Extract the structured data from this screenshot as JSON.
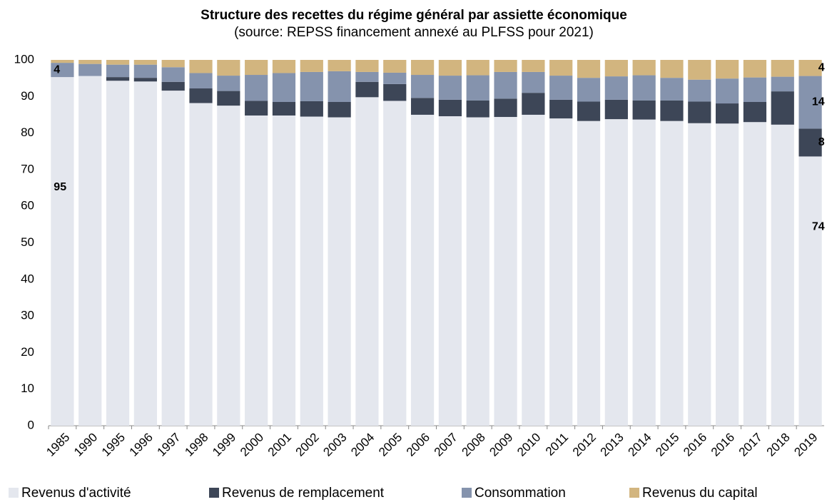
{
  "chart_data": {
    "type": "stacked_bar",
    "title": "Structure des recettes du régime général par assiette économique",
    "subtitle": "(source: REPSS financement annexé au PLFSS pour 2021)",
    "categories": [
      "1985",
      "1990",
      "1995",
      "1996",
      "1997",
      "1998",
      "1999",
      "2000",
      "2001",
      "2002",
      "2003",
      "2004",
      "2005",
      "2006",
      "2007",
      "2008",
      "2009",
      "2010",
      "2011",
      "2012",
      "2013",
      "2014",
      "2015",
      "2016",
      "2016",
      "2017",
      "2018",
      "2019"
    ],
    "series": [
      {
        "name": "Revenus d'activité",
        "color": "#e4e7ee",
        "values": [
          95.3,
          95.6,
          94.3,
          94.1,
          91.6,
          88.2,
          87.5,
          84.8,
          84.8,
          84.5,
          84.3,
          89.8,
          88.8,
          85.0,
          84.6,
          84.3,
          84.4,
          85.0,
          84.0,
          83.3,
          83.8,
          83.7,
          83.3,
          82.7,
          82.6,
          83.0,
          82.3,
          73.6
        ],
        "value_labels": [
          "95",
          null,
          null,
          null,
          null,
          null,
          null,
          null,
          null,
          null,
          null,
          null,
          null,
          null,
          null,
          null,
          null,
          null,
          null,
          null,
          null,
          null,
          null,
          null,
          null,
          null,
          null,
          "74"
        ]
      },
      {
        "name": "Revenus de remplacement",
        "color": "#3d4657",
        "values": [
          0,
          0,
          1.0,
          1.0,
          2.4,
          4.0,
          4.0,
          4.0,
          3.7,
          4.2,
          4.2,
          4.2,
          4.6,
          4.6,
          4.5,
          4.6,
          5.0,
          6.0,
          5.1,
          5.3,
          5.3,
          5.2,
          5.6,
          5.9,
          5.5,
          5.5,
          9.1,
          7.6
        ],
        "value_labels": [
          null,
          null,
          null,
          null,
          null,
          null,
          null,
          null,
          null,
          null,
          null,
          null,
          null,
          null,
          null,
          null,
          null,
          null,
          null,
          null,
          null,
          null,
          null,
          null,
          null,
          null,
          null,
          "8"
        ]
      },
      {
        "name": "Consommation",
        "color": "#8593ad",
        "values": [
          3.9,
          3.3,
          3.4,
          3.6,
          4.0,
          4.2,
          4.2,
          7.1,
          7.9,
          8.0,
          8.4,
          2.7,
          3.1,
          6.3,
          6.6,
          6.9,
          7.3,
          5.7,
          6.6,
          6.5,
          6.4,
          6.9,
          6.2,
          6.0,
          6.8,
          6.7,
          4.0,
          14.4
        ],
        "value_labels": [
          "4",
          null,
          null,
          null,
          null,
          null,
          null,
          null,
          null,
          null,
          null,
          null,
          null,
          null,
          null,
          null,
          null,
          null,
          null,
          null,
          null,
          null,
          null,
          null,
          null,
          null,
          null,
          "14"
        ]
      },
      {
        "name": "Revenus du capital",
        "color": "#d2b57f",
        "values": [
          0.8,
          1.1,
          1.3,
          1.3,
          2.0,
          3.6,
          4.3,
          4.1,
          3.6,
          3.3,
          3.1,
          3.3,
          3.5,
          4.1,
          4.3,
          4.2,
          3.3,
          3.3,
          4.3,
          4.9,
          4.5,
          4.2,
          4.9,
          5.4,
          5.1,
          4.8,
          4.6,
          4.4
        ],
        "value_labels": [
          null,
          null,
          null,
          null,
          null,
          null,
          null,
          null,
          null,
          null,
          null,
          null,
          null,
          null,
          null,
          null,
          null,
          null,
          null,
          null,
          null,
          null,
          null,
          null,
          null,
          null,
          null,
          "4"
        ]
      }
    ],
    "ylim": [
      0,
      100
    ],
    "yticks": [
      0,
      10,
      20,
      30,
      40,
      50,
      60,
      70,
      80,
      90,
      100
    ],
    "grid": false,
    "legend": "bottom"
  }
}
